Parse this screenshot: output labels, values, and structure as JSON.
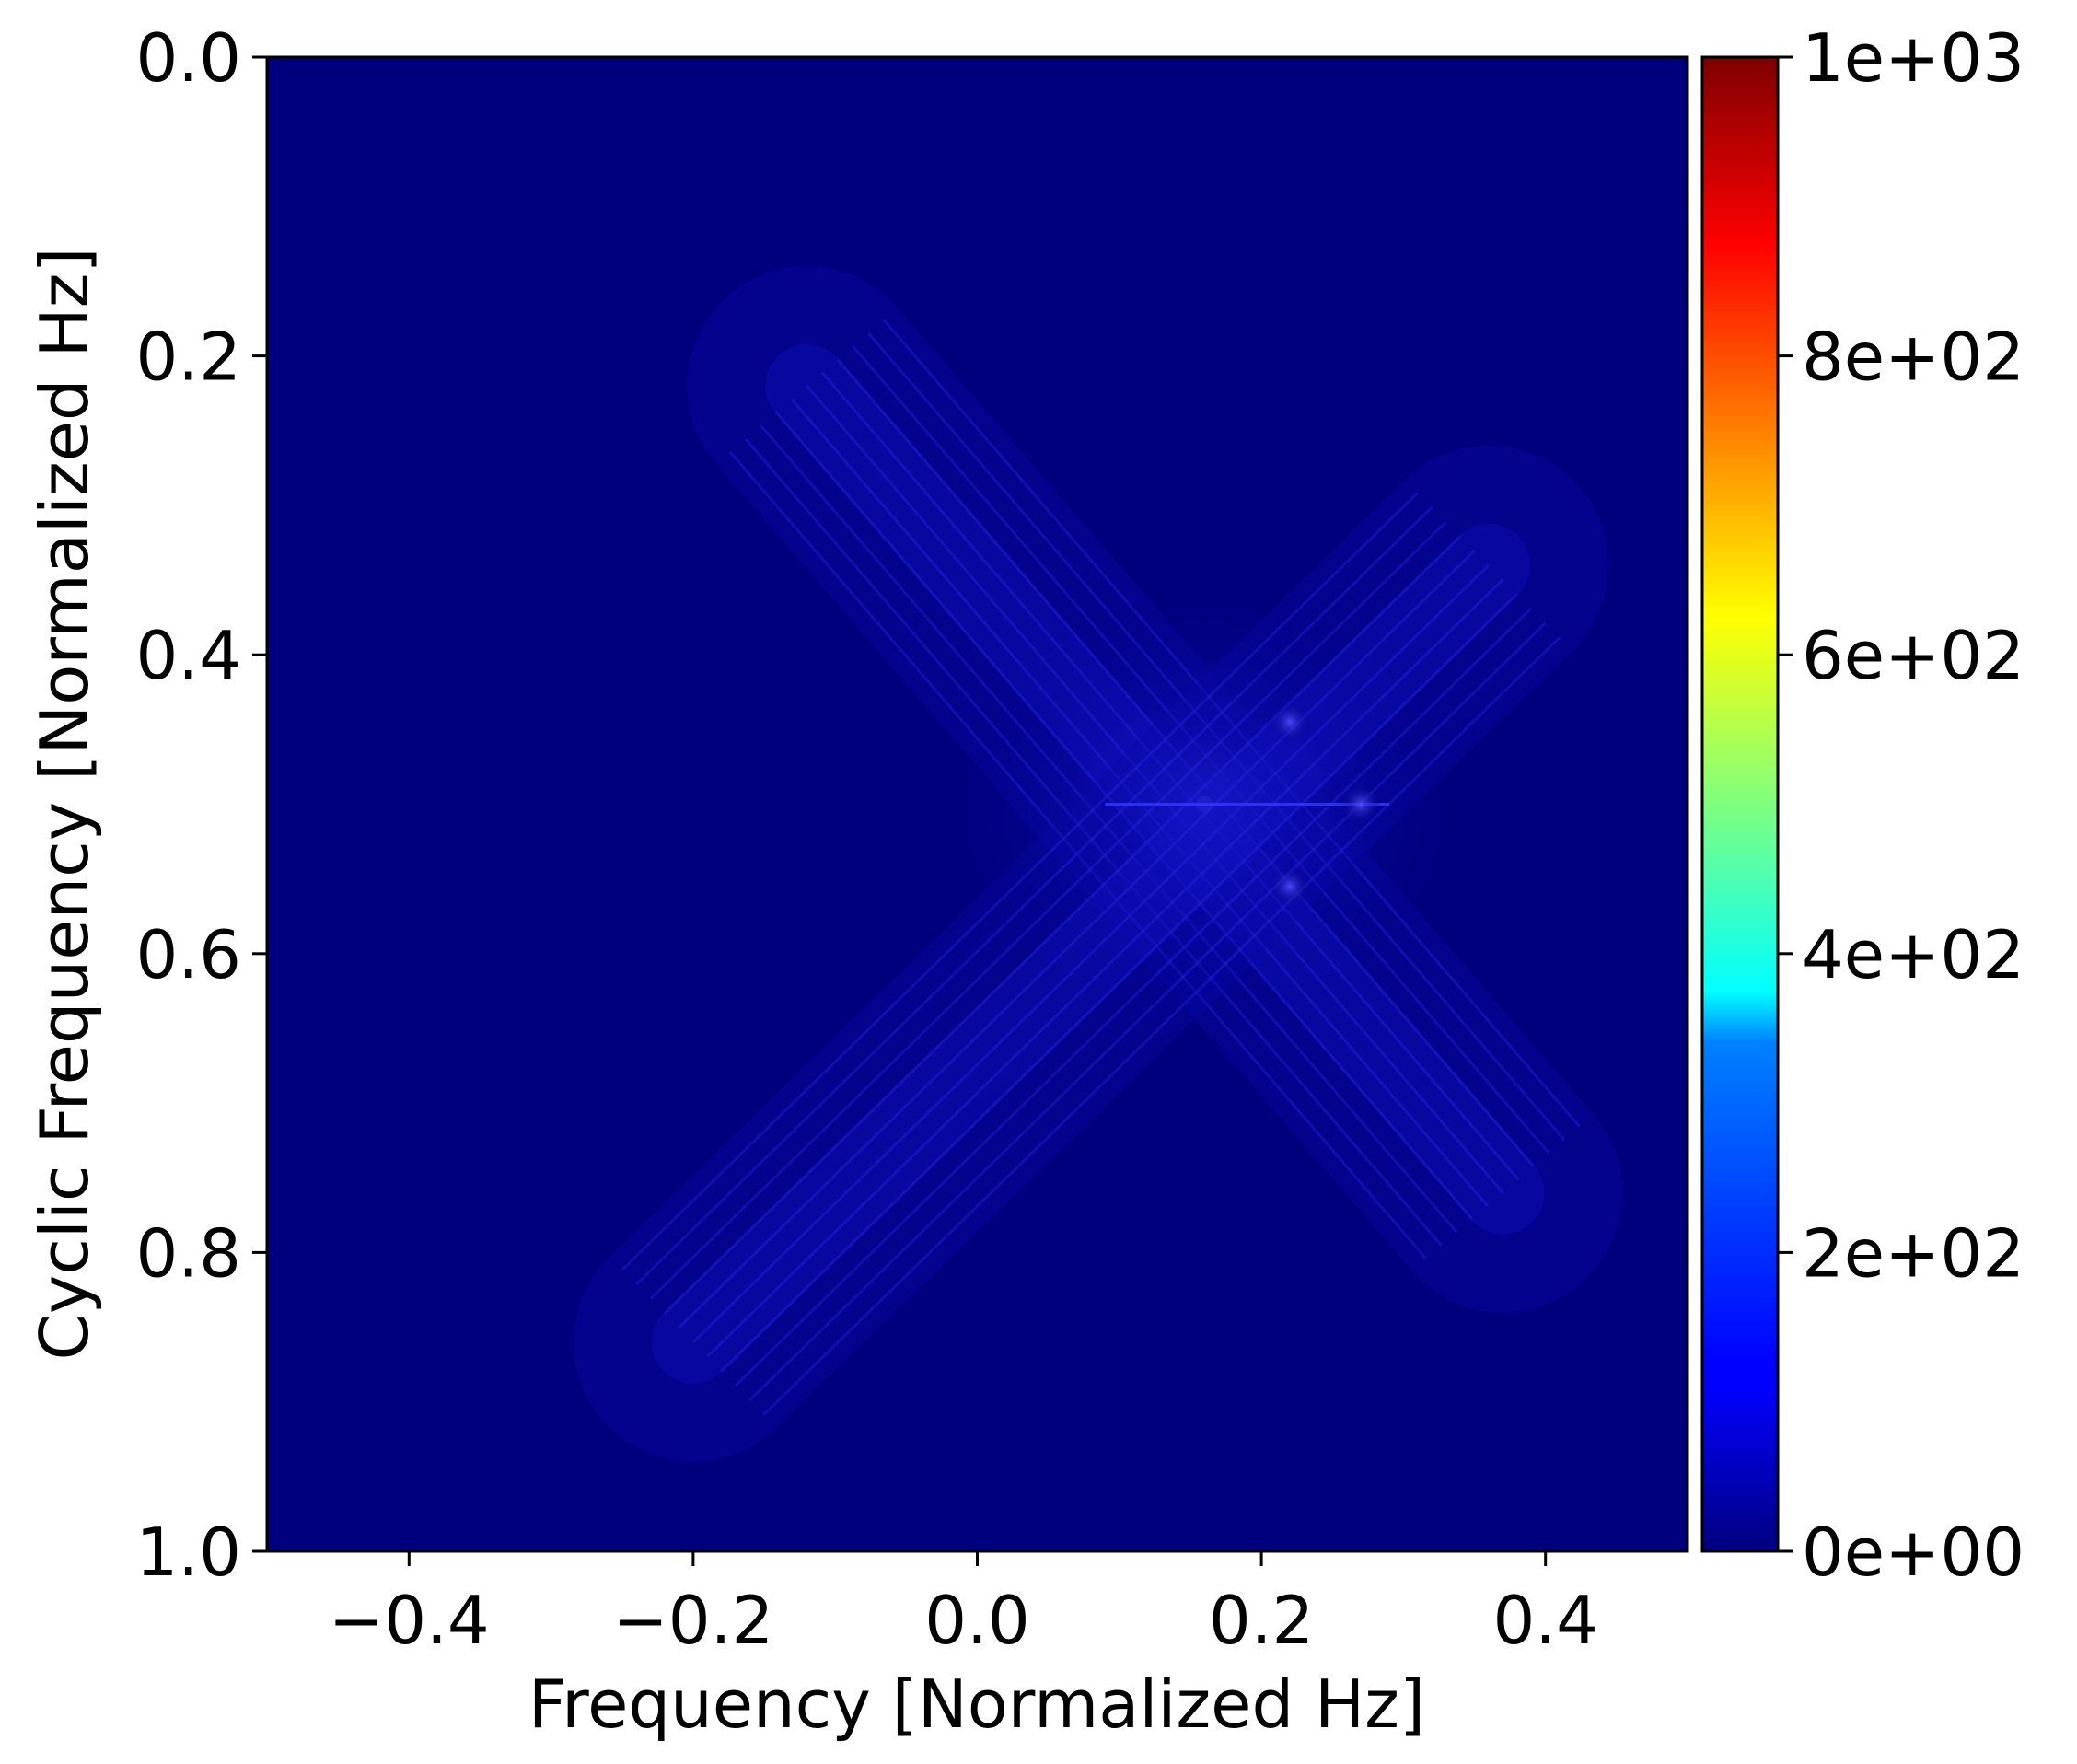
{
  "chart_data": {
    "type": "heatmap",
    "title": "",
    "xlabel": "Frequency [Normalized Hz]",
    "ylabel": "Cyclic Frequency [Normalized Hz]",
    "xlim": [
      -0.5,
      0.5
    ],
    "ylim": [
      0.0,
      1.0
    ],
    "y_inverted": true,
    "x_ticks": [
      -0.4,
      -0.2,
      0.0,
      0.2,
      0.4
    ],
    "x_tick_labels": [
      "−0.4",
      "−0.2",
      "0.0",
      "0.2",
      "0.4"
    ],
    "y_ticks": [
      0.0,
      0.2,
      0.4,
      0.6,
      0.8,
      1.0
    ],
    "y_tick_labels": [
      "0.0",
      "0.2",
      "0.4",
      "0.6",
      "0.8",
      "1.0"
    ],
    "colormap": "jet",
    "colorbar": {
      "range": [
        0,
        1000
      ],
      "ticks": [
        0,
        200,
        400,
        600,
        800,
        1000
      ],
      "tick_labels": [
        "0e+00",
        "2e+02",
        "4e+02",
        "6e+02",
        "8e+02",
        "1e+03"
      ]
    },
    "background_value": 0,
    "features": [
      {
        "kind": "peak",
        "x": 0.16,
        "y": 0.5,
        "value": 180
      },
      {
        "kind": "diagonal-band",
        "from": [
          -0.12,
          0.22
        ],
        "to": [
          0.37,
          0.76
        ],
        "value": 40
      },
      {
        "kind": "diagonal-band",
        "from": [
          -0.2,
          0.86
        ],
        "to": [
          0.36,
          0.34
        ],
        "value": 40
      },
      {
        "kind": "horizontal-line",
        "y": 0.5,
        "x_range": [
          0.09,
          0.29
        ],
        "value": 70
      },
      {
        "kind": "hotspot",
        "x": 0.22,
        "y": 0.445,
        "value": 110
      },
      {
        "kind": "hotspot",
        "x": 0.22,
        "y": 0.555,
        "value": 110
      },
      {
        "kind": "hotspot",
        "x": 0.27,
        "y": 0.5,
        "value": 90
      }
    ]
  }
}
